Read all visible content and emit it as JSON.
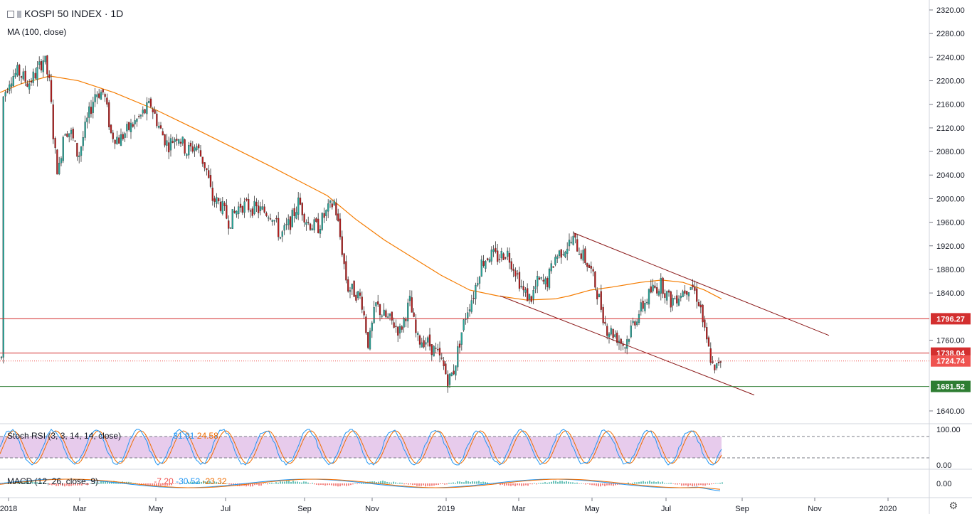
{
  "header": {
    "symbol": "KOSPI 50 INDEX",
    "sep": "·",
    "interval": "1D",
    "ma_label": "MA (100, close)"
  },
  "indicators": {
    "stoch_label": "Stoch RSI (3, 3, 14, 14, close)",
    "stoch_k": "31.91",
    "stoch_d": "24.58",
    "macd_label": "MACD (12, 26, close, 9)",
    "macd_hist": "-7.20",
    "macd_line": "-30.52",
    "macd_signal": "-23.32"
  },
  "colors": {
    "up": "#26a69a",
    "down": "#b71c1c",
    "ma": "#f57c00",
    "channel": "#8b1a1a",
    "level_red": "#d32f2f",
    "level_green": "#2e7d32",
    "stoch_k": "#2196f3",
    "stoch_d": "#ef6c00",
    "stoch_band": "#e1bee7"
  },
  "chart_data": {
    "type": "candlestick",
    "x_ticks": [
      "2018",
      "Mar",
      "May",
      "Jul",
      "Sep",
      "Nov",
      "2019",
      "Mar",
      "May",
      "Jul",
      "Sep",
      "Nov",
      "2020"
    ],
    "y_ticks": [
      "2320.00",
      "2280.00",
      "2240.00",
      "2200.00",
      "2160.00",
      "2120.00",
      "2080.00",
      "2040.00",
      "2000.00",
      "1960.00",
      "1920.00",
      "1880.00",
      "1840.00",
      "1760.00",
      "1640.00"
    ],
    "ylim": [
      1620,
      2330
    ],
    "levels": [
      {
        "value": 1796.27,
        "label": "1796.27",
        "color": "#d32f2f"
      },
      {
        "value": 1738.04,
        "label": "1738.04",
        "color": "#d32f2f"
      },
      {
        "value": 1724.74,
        "label": "1724.74",
        "color": "#ef5350",
        "dotted": true
      },
      {
        "value": 1681.52,
        "label": "1681.52",
        "color": "#2e7d32"
      }
    ],
    "stoch_ticks": [
      "100.00",
      "0.00"
    ],
    "macd_ticks": [
      "0.00"
    ]
  }
}
